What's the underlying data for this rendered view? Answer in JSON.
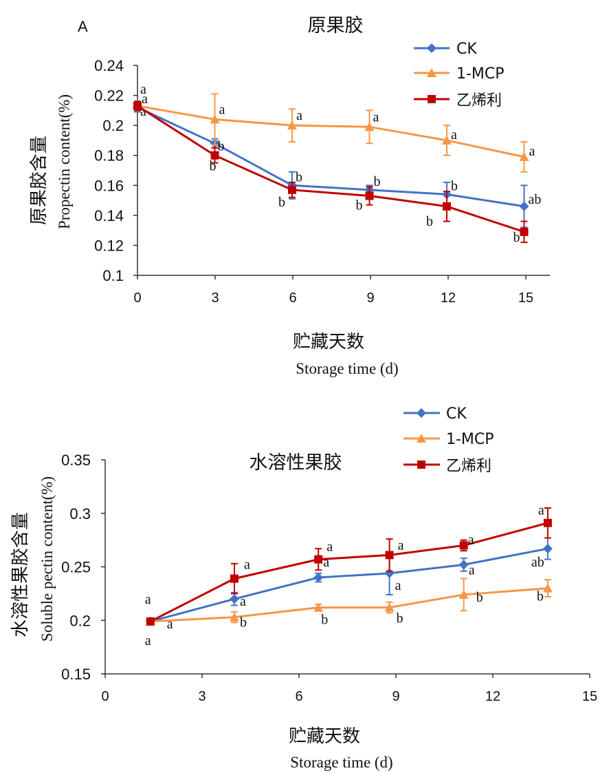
{
  "chart_data": [
    {
      "type": "line",
      "panel_label": "A",
      "title": "原果胶",
      "ylabel_cn": "原果胶含量",
      "ylabel_en": "Propectin content(%)",
      "xlabel_cn": "贮藏天数",
      "xlabel_en": "Storage time (d)",
      "x": [
        0,
        3,
        6,
        9,
        12,
        15
      ],
      "x_ticks": [
        "0",
        "3",
        "6",
        "9",
        "12",
        "15"
      ],
      "xlim": [
        0,
        16
      ],
      "ylim": [
        0.1,
        0.24
      ],
      "y_ticks": [
        "0.1",
        "0.12",
        "0.14",
        "0.16",
        "0.18",
        "0.2",
        "0.22",
        "0.24"
      ],
      "legend_position": "top-right",
      "series": [
        {
          "name": "CK",
          "color": "#4472C4",
          "marker": "diamond",
          "values": [
            0.212,
            0.188,
            0.16,
            0.157,
            0.154,
            0.146
          ],
          "errors": [
            0.003,
            0.003,
            0.009,
            0.003,
            0.008,
            0.014
          ],
          "letters": [
            "a",
            "b",
            "b",
            "b",
            "b",
            "ab"
          ]
        },
        {
          "name": "1-MCP",
          "color": "#F79646",
          "marker": "triangle",
          "values": [
            0.213,
            0.204,
            0.2,
            0.199,
            0.19,
            0.179
          ],
          "errors": [
            0.003,
            0.017,
            0.011,
            0.011,
            0.01,
            0.01
          ],
          "letters": [
            "a",
            "a",
            "a",
            "a",
            "a",
            "a"
          ]
        },
        {
          "name": "乙烯利",
          "color": "#C00000",
          "marker": "square",
          "values": [
            0.213,
            0.18,
            0.157,
            0.153,
            0.146,
            0.129
          ],
          "errors": [
            0.003,
            0.005,
            0.005,
            0.006,
            0.01,
            0.007
          ],
          "letters": [
            "a",
            "b",
            "b",
            "b",
            "b",
            "b"
          ]
        }
      ]
    },
    {
      "type": "line",
      "title": "水溶性果胶",
      "ylabel_cn": "水溶性果胶含量",
      "ylabel_en": "Soluble pectin content(%)",
      "xlabel_cn": "贮藏天数",
      "xlabel_en": "Storage time (d)",
      "x": [
        1.4,
        4.0,
        6.6,
        8.8,
        11.1,
        13.7
      ],
      "x_ticks": [
        "0",
        "3",
        "6",
        "9",
        "12",
        "15"
      ],
      "xlim": [
        0,
        15
      ],
      "ylim": [
        0.15,
        0.35
      ],
      "y_ticks": [
        "0.15",
        "0.2",
        "0.25",
        "0.3",
        "0.35"
      ],
      "legend_position": "top-right",
      "series": [
        {
          "name": "CK",
          "color": "#4472C4",
          "marker": "diamond",
          "values": [
            0.199,
            0.22,
            0.24,
            0.244,
            0.252,
            0.267
          ],
          "errors": [
            0.002,
            0.006,
            0.004,
            0.02,
            0.006,
            0.01
          ],
          "letters": [
            "a",
            "a",
            "a",
            "a",
            "a",
            "ab"
          ]
        },
        {
          "name": "1-MCP",
          "color": "#F79646",
          "marker": "triangle",
          "values": [
            0.199,
            0.203,
            0.212,
            0.212,
            0.224,
            0.23
          ],
          "errors": [
            0.002,
            0.005,
            0.003,
            0.005,
            0.015,
            0.008
          ],
          "letters": [
            "a",
            "b",
            "b",
            "b",
            "b",
            "b"
          ]
        },
        {
          "name": "乙烯利",
          "color": "#C00000",
          "marker": "square",
          "values": [
            0.199,
            0.239,
            0.257,
            0.261,
            0.27,
            0.291
          ],
          "errors": [
            0.002,
            0.014,
            0.01,
            0.015,
            0.005,
            0.014
          ],
          "letters": [
            "a",
            "a",
            "a",
            "a",
            "a",
            "a"
          ]
        }
      ]
    }
  ]
}
